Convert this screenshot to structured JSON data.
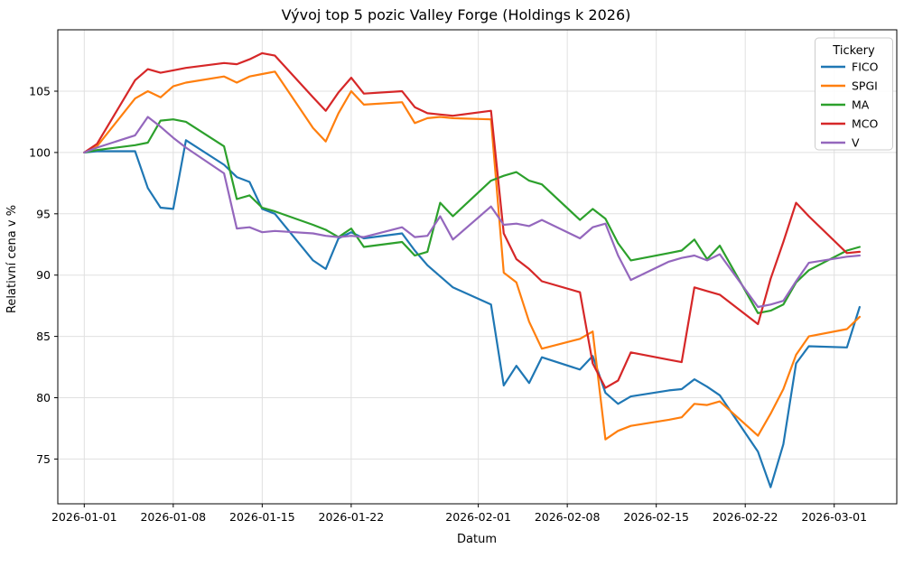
{
  "chart_data": {
    "type": "line",
    "title": "Vývoj top 5 pozic Valley Forge (Holdings k 2026)",
    "xlabel": "Datum",
    "ylabel": "Relativní cena v %",
    "legend_title": "Tickery",
    "legend_position": "upper right",
    "grid": true,
    "ylim": [
      71.4,
      110.0
    ],
    "y_ticks": [
      75,
      80,
      85,
      90,
      95,
      100,
      105
    ],
    "x_ticks": [
      "2026-01-01",
      "2026-01-08",
      "2026-01-15",
      "2026-01-22",
      "2026-02-01",
      "2026-02-08",
      "2026-02-15",
      "2026-02-22",
      "2026-03-01"
    ],
    "dates": [
      "2026-01-01",
      "2026-01-02",
      "2026-01-05",
      "2026-01-06",
      "2026-01-07",
      "2026-01-08",
      "2026-01-09",
      "2026-01-12",
      "2026-01-13",
      "2026-01-14",
      "2026-01-15",
      "2026-01-16",
      "2026-01-19",
      "2026-01-20",
      "2026-01-21",
      "2026-01-22",
      "2026-01-23",
      "2026-01-26",
      "2026-01-27",
      "2026-01-28",
      "2026-01-29",
      "2026-01-30",
      "2026-02-02",
      "2026-02-03",
      "2026-02-04",
      "2026-02-05",
      "2026-02-06",
      "2026-02-09",
      "2026-02-10",
      "2026-02-11",
      "2026-02-12",
      "2026-02-13",
      "2026-02-16",
      "2026-02-17",
      "2026-02-18",
      "2026-02-19",
      "2026-02-20",
      "2026-02-23",
      "2026-02-24",
      "2026-02-25",
      "2026-02-26",
      "2026-02-27",
      "2026-03-02",
      "2026-03-03"
    ],
    "series": [
      {
        "name": "FICO",
        "color": "#1f77b4",
        "values": [
          100,
          100.1,
          100.1,
          97.1,
          95.5,
          95.4,
          101.0,
          99.0,
          98.0,
          97.6,
          95.4,
          95.0,
          91.2,
          90.5,
          93.0,
          93.5,
          93.0,
          93.4,
          92.0,
          90.8,
          89.9,
          89.0,
          87.6,
          81.0,
          82.6,
          81.2,
          83.3,
          82.3,
          83.4,
          80.4,
          79.5,
          80.1,
          80.6,
          80.7,
          81.5,
          80.9,
          80.2,
          75.6,
          72.7,
          76.2,
          82.8,
          84.2,
          84.1,
          87.4
        ]
      },
      {
        "name": "SPGI",
        "color": "#ff7f0e",
        "values": [
          100,
          100.5,
          104.4,
          105.0,
          104.5,
          105.4,
          105.7,
          106.2,
          105.7,
          106.2,
          106.4,
          106.6,
          102.0,
          100.9,
          103.2,
          105.0,
          103.9,
          104.1,
          102.4,
          102.8,
          102.9,
          102.8,
          102.7,
          90.2,
          89.4,
          86.2,
          84.0,
          84.8,
          85.4,
          76.6,
          77.3,
          77.7,
          78.2,
          78.4,
          79.5,
          79.4,
          79.7,
          76.9,
          78.7,
          80.7,
          83.5,
          85.0,
          85.6,
          86.6
        ]
      },
      {
        "name": "MA",
        "color": "#2ca02c",
        "values": [
          100,
          100.2,
          100.6,
          100.8,
          102.6,
          102.7,
          102.5,
          100.5,
          96.2,
          96.5,
          95.5,
          95.2,
          94.1,
          93.7,
          93.1,
          93.8,
          92.3,
          92.7,
          91.6,
          91.9,
          95.9,
          94.8,
          97.7,
          98.1,
          98.4,
          97.7,
          97.4,
          94.5,
          95.4,
          94.6,
          92.6,
          91.2,
          91.8,
          92.0,
          92.9,
          91.3,
          92.4,
          86.9,
          87.1,
          87.6,
          89.4,
          90.4,
          92.0,
          92.3
        ]
      },
      {
        "name": "MCO",
        "color": "#d62728",
        "values": [
          100,
          100.7,
          105.9,
          106.8,
          106.5,
          106.7,
          106.9,
          107.3,
          107.2,
          107.6,
          108.1,
          107.9,
          104.5,
          103.4,
          104.9,
          106.1,
          104.8,
          105.0,
          103.7,
          103.2,
          103.1,
          103.0,
          103.4,
          93.4,
          91.3,
          90.5,
          89.5,
          88.6,
          82.8,
          80.8,
          81.4,
          83.7,
          83.1,
          82.9,
          89.0,
          88.7,
          88.4,
          86.0,
          89.7,
          92.7,
          95.9,
          94.8,
          91.8,
          91.9
        ]
      },
      {
        "name": "V",
        "color": "#9467bd",
        "values": [
          100,
          100.4,
          101.4,
          102.9,
          102.1,
          101.2,
          100.4,
          98.3,
          93.8,
          93.9,
          93.5,
          93.6,
          93.4,
          93.2,
          93.1,
          93.2,
          93.1,
          93.9,
          93.1,
          93.2,
          94.8,
          92.9,
          95.6,
          94.1,
          94.2,
          94.0,
          94.5,
          93.0,
          93.9,
          94.2,
          91.6,
          89.6,
          91.1,
          91.4,
          91.6,
          91.2,
          91.7,
          87.4,
          87.6,
          87.9,
          89.5,
          91.0,
          91.5,
          91.6
        ]
      }
    ]
  }
}
